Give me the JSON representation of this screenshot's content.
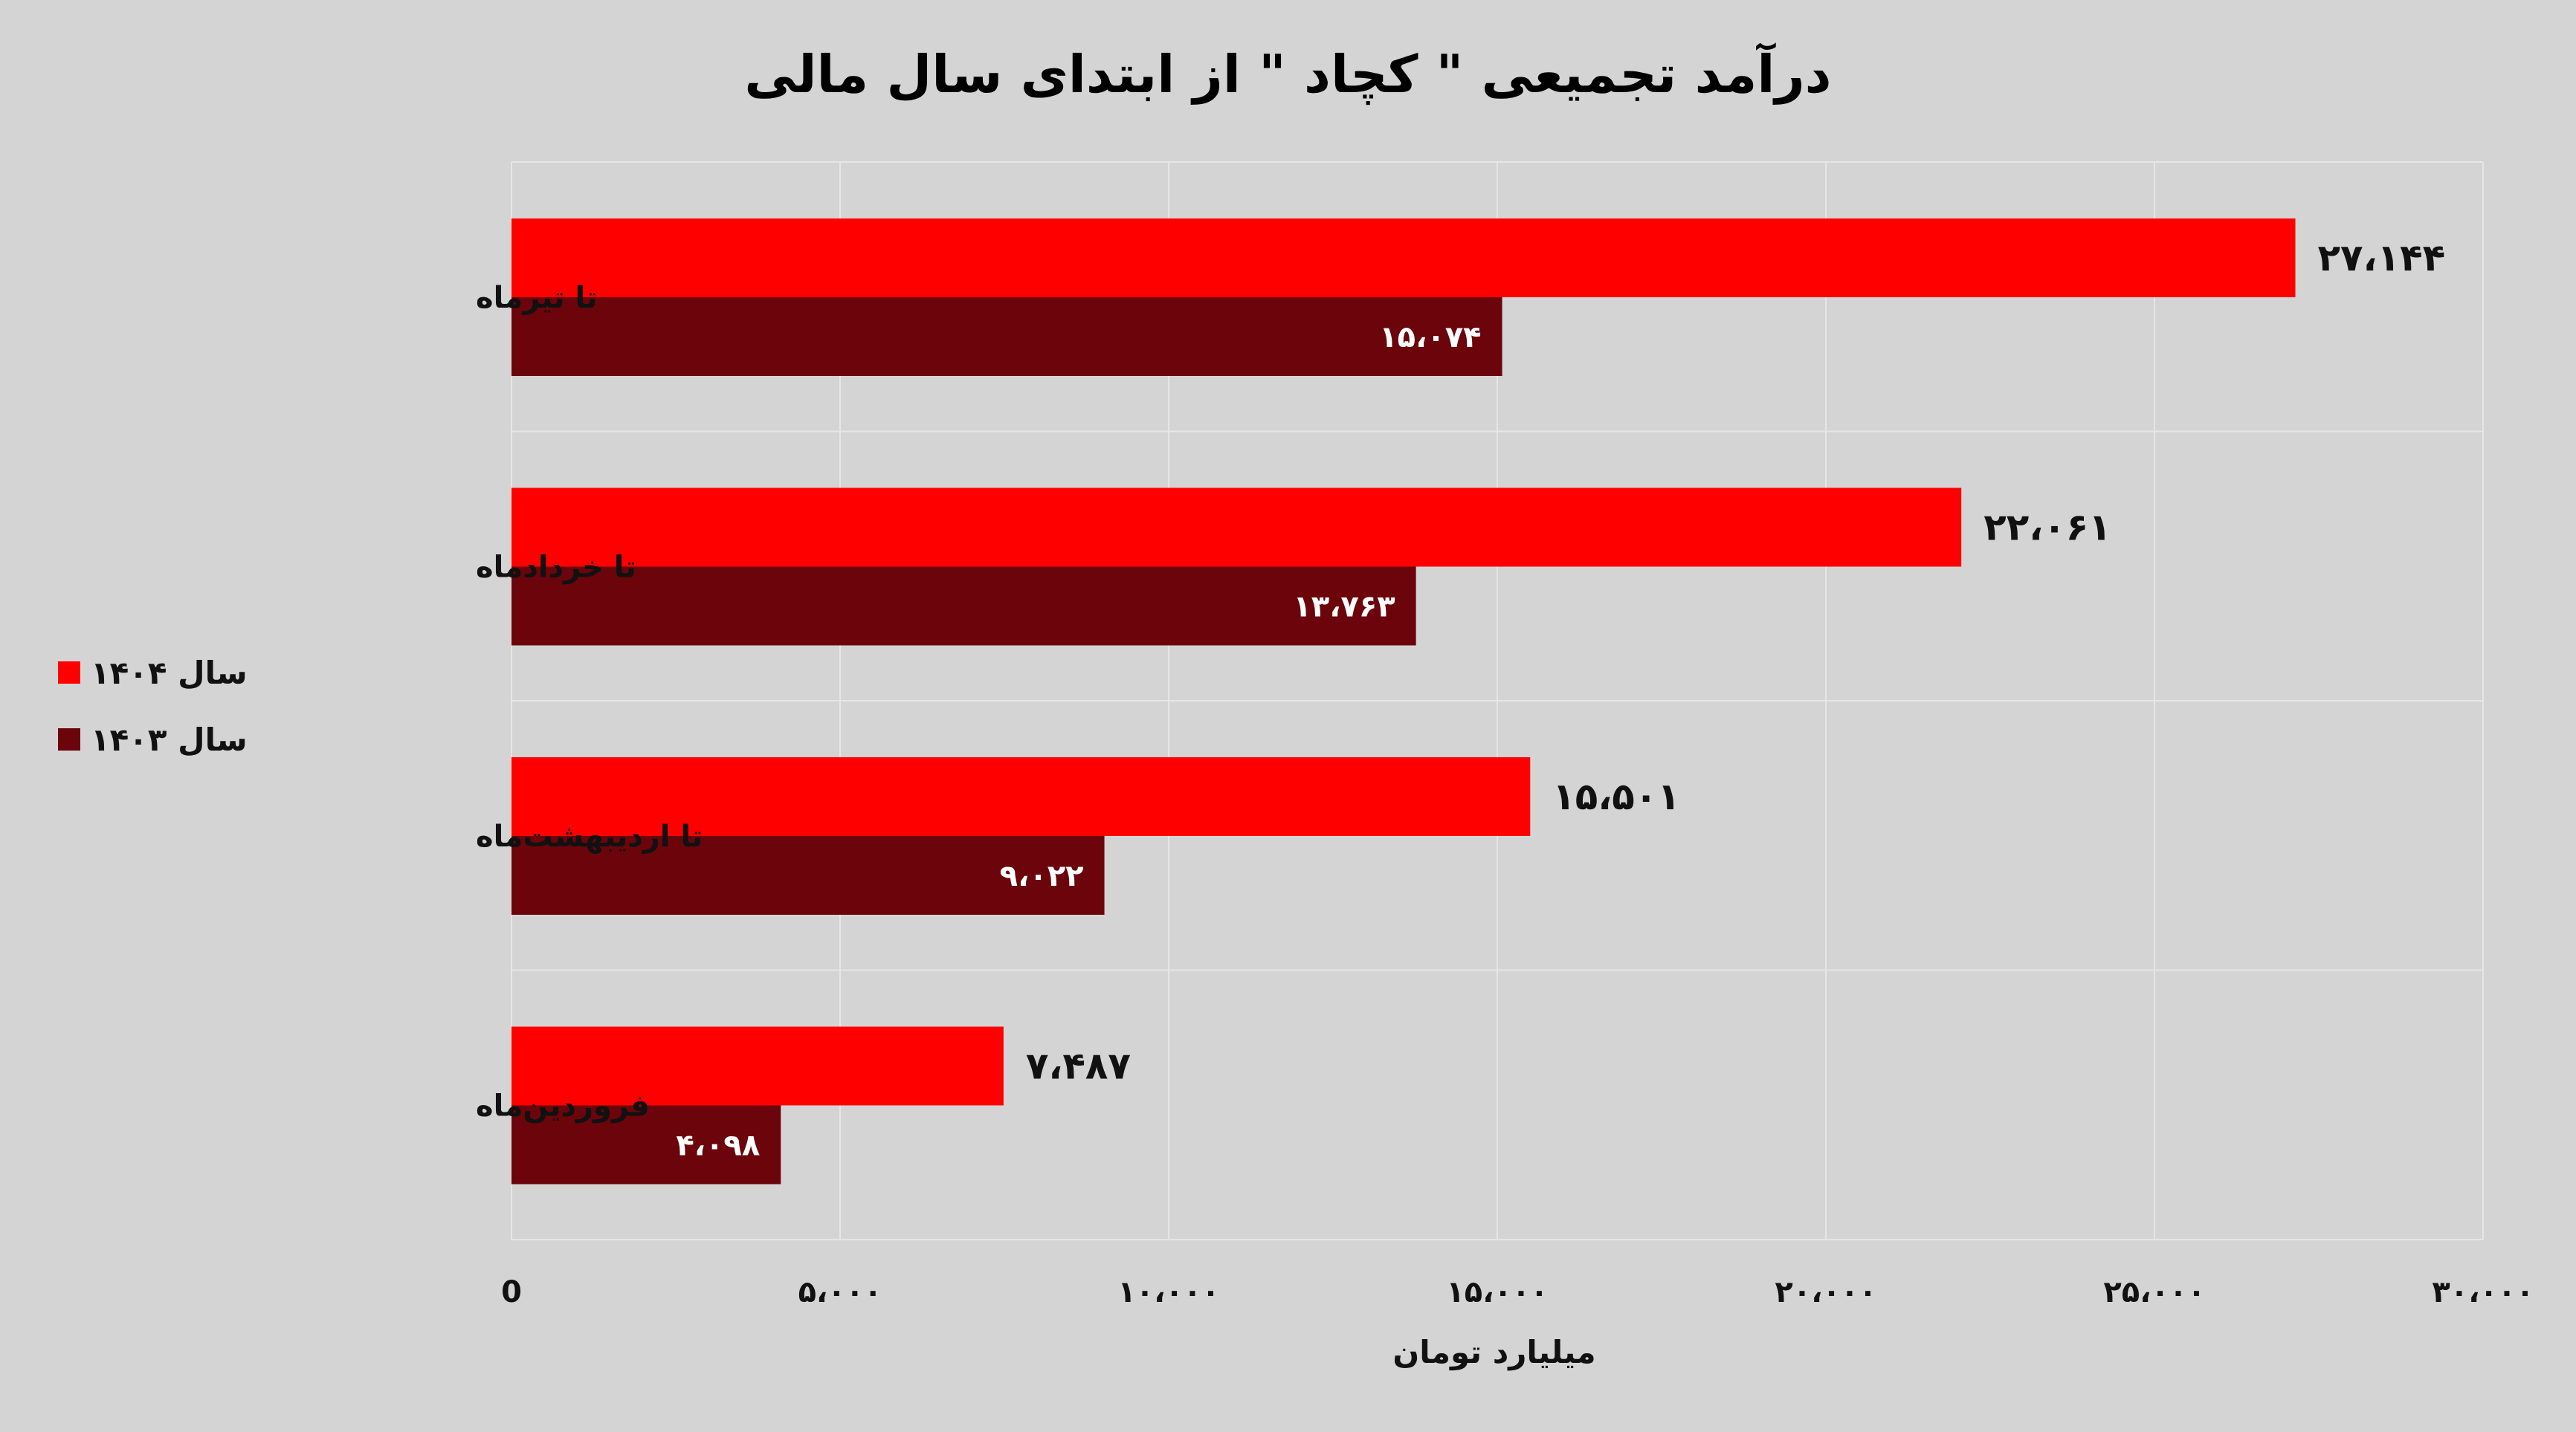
{
  "chart_data": {
    "type": "bar",
    "orientation": "horizontal",
    "title": "درآمد تجمیعی \" کچاد \" از ابتدای سال مالی",
    "xlabel": "میلیارد تومان",
    "ylabel": "",
    "xlim": [
      0,
      30000
    ],
    "xticks": [
      0,
      5000,
      10000,
      15000,
      20000,
      25000,
      30000
    ],
    "xtick_labels": [
      "0",
      "۵،۰۰۰",
      "۱۰،۰۰۰",
      "۱۵،۰۰۰",
      "۲۰،۰۰۰",
      "۲۵،۰۰۰",
      "۳۰،۰۰۰"
    ],
    "grid": true,
    "legend_position": "left",
    "categories": [
      "تا تیرماه",
      "تا خردادماه",
      "تا اردیبهشت‌ماه",
      "فروردین‌ماه"
    ],
    "series": [
      {
        "name": "سال ۱۴۰۴",
        "color": "#ff0000",
        "values": [
          27144,
          22061,
          15501,
          7487
        ],
        "value_labels": [
          "۲۷،۱۴۴",
          "۲۲،۰۶۱",
          "۱۵،۵۰۱",
          "۷،۴۸۷"
        ]
      },
      {
        "name": "سال ۱۴۰۳",
        "color": "#6b050b",
        "values": [
          15074,
          13763,
          9022,
          4098
        ],
        "value_labels": [
          "۱۵،۰۷۴",
          "۱۳،۷۶۳",
          "۹،۰۲۲",
          "۴،۰۹۸"
        ]
      }
    ]
  }
}
